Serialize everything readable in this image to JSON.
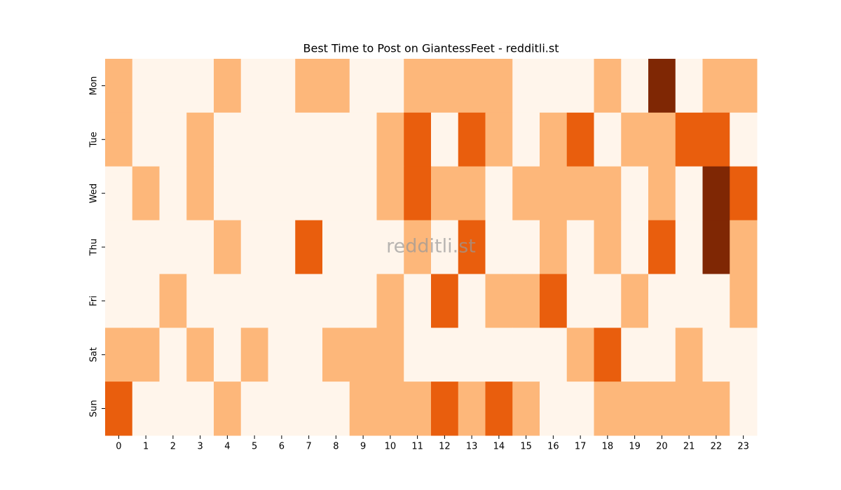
{
  "chart_data": {
    "type": "heatmap",
    "title": "Best Time to Post on GiantessFeet - redditli.st",
    "watermark": "redditli.st",
    "rows": [
      "Mon",
      "Tue",
      "Wed",
      "Thu",
      "Fri",
      "Sat",
      "Sun"
    ],
    "columns": [
      0,
      1,
      2,
      3,
      4,
      5,
      6,
      7,
      8,
      9,
      10,
      11,
      12,
      13,
      14,
      15,
      16,
      17,
      18,
      19,
      20,
      21,
      22,
      23
    ],
    "values": [
      [
        1,
        0,
        0,
        0,
        1,
        0,
        0,
        1,
        1,
        0,
        0,
        1,
        1,
        1,
        1,
        0,
        0,
        0,
        1,
        0,
        3,
        0,
        1,
        1
      ],
      [
        1,
        0,
        0,
        1,
        0,
        0,
        0,
        0,
        0,
        0,
        1,
        2,
        0,
        2,
        1,
        0,
        1,
        2,
        0,
        1,
        1,
        2,
        2,
        0
      ],
      [
        0,
        1,
        0,
        1,
        0,
        0,
        0,
        0,
        0,
        0,
        1,
        2,
        1,
        1,
        0,
        1,
        1,
        1,
        1,
        0,
        1,
        0,
        3,
        2
      ],
      [
        0,
        0,
        0,
        0,
        1,
        0,
        0,
        2,
        0,
        0,
        0,
        1,
        0,
        2,
        0,
        0,
        1,
        0,
        1,
        0,
        2,
        0,
        3,
        1
      ],
      [
        0,
        0,
        1,
        0,
        0,
        0,
        0,
        0,
        0,
        0,
        1,
        0,
        2,
        0,
        1,
        1,
        2,
        0,
        0,
        1,
        0,
        0,
        0,
        1
      ],
      [
        1,
        1,
        0,
        1,
        0,
        1,
        0,
        0,
        1,
        1,
        1,
        0,
        0,
        0,
        0,
        0,
        0,
        1,
        2,
        0,
        0,
        1,
        0,
        0
      ],
      [
        2,
        0,
        0,
        0,
        1,
        0,
        0,
        0,
        0,
        1,
        1,
        1,
        2,
        1,
        2,
        1,
        0,
        0,
        1,
        1,
        1,
        1,
        1,
        0
      ]
    ],
    "vlim": [
      0,
      3
    ],
    "colors": [
      "#fff5eb",
      "#fdb77a",
      "#e95e0d",
      "#7f2704"
    ]
  }
}
